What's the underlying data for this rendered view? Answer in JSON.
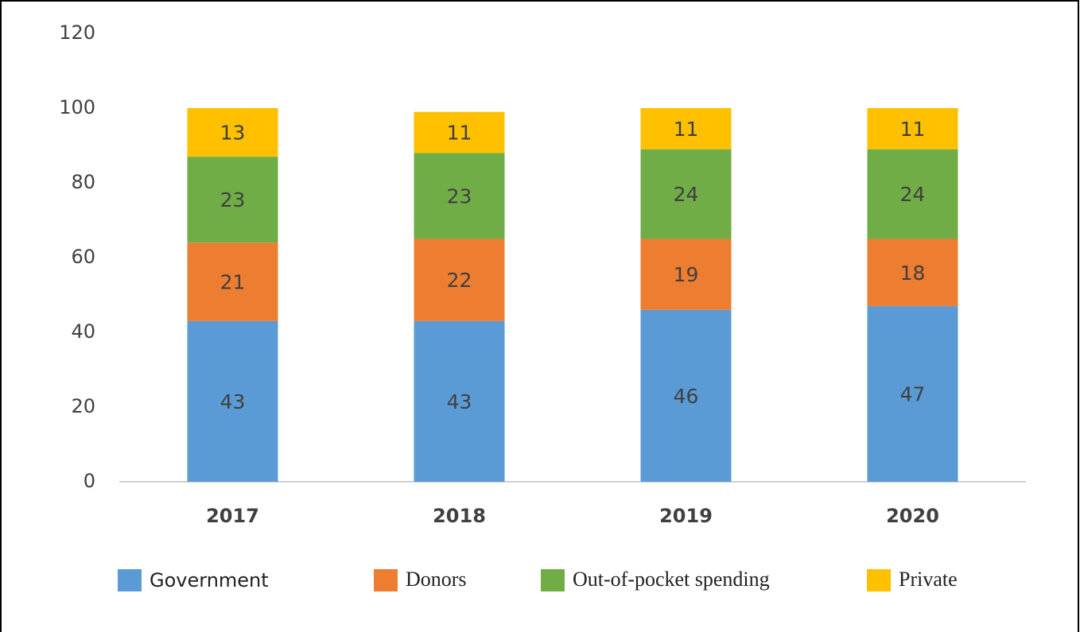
{
  "chart_data": {
    "type": "stacked_bar",
    "categories": [
      "2017",
      "2018",
      "2019",
      "2020"
    ],
    "series": [
      {
        "name": "Government",
        "color": "#5b9bd5",
        "values": [
          43,
          43,
          46,
          47
        ]
      },
      {
        "name": "Donors",
        "color": "#ed7d31",
        "values": [
          21,
          22,
          19,
          18
        ]
      },
      {
        "name": "Out-of-pocket spending",
        "color": "#70ad47",
        "values": [
          23,
          23,
          24,
          24
        ]
      },
      {
        "name": "Private",
        "color": "#ffc000",
        "values": [
          13,
          11,
          11,
          11
        ]
      }
    ],
    "ylim": [
      0,
      120
    ],
    "yticks": [
      0,
      20,
      40,
      60,
      80,
      100,
      120
    ],
    "grid": false,
    "legend": "bottom"
  }
}
